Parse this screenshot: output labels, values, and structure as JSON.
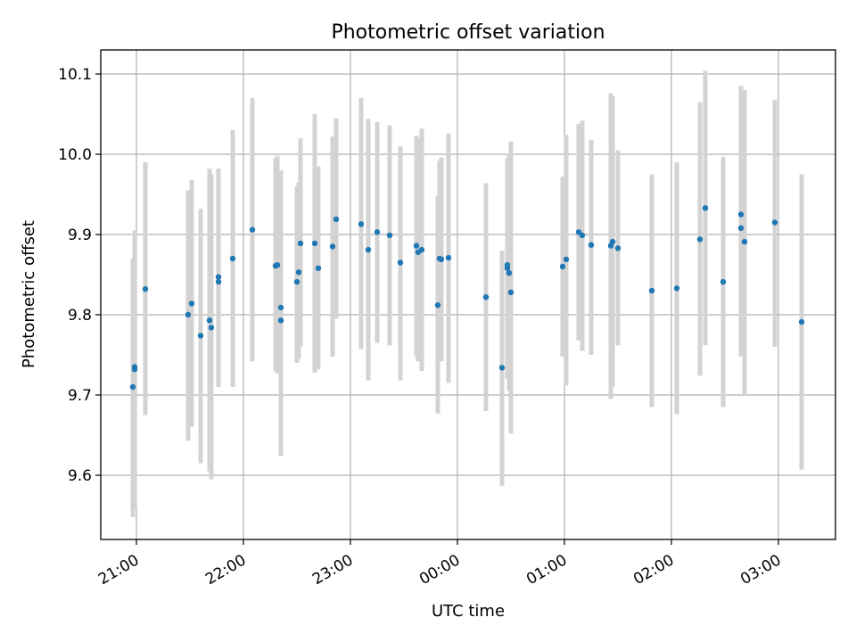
{
  "chart_data": {
    "type": "scatter",
    "title": "Photometric offset variation",
    "xlabel": "UTC time",
    "ylabel": "Photometric offset",
    "x_tick_labels": [
      "21:00",
      "22:00",
      "23:00",
      "00:00",
      "01:00",
      "02:00",
      "03:00"
    ],
    "y_tick_labels": [
      "9.6",
      "9.7",
      "9.8",
      "9.9",
      "10.0",
      "10.1"
    ],
    "xlim": [
      "20:40",
      "03:32"
    ],
    "ylim": [
      9.52,
      10.13
    ],
    "grid": true,
    "colors": {
      "point": "#1f77b4",
      "errorbar": "#d3d3d3"
    },
    "points": [
      {
        "t": "20:58",
        "y": 9.71,
        "lo": 9.548,
        "hi": 9.87
      },
      {
        "t": "20:59",
        "y": 9.732,
        "lo": 9.56,
        "hi": 9.895
      },
      {
        "t": "20:59",
        "y": 9.735,
        "lo": 9.565,
        "hi": 9.905
      },
      {
        "t": "21:05",
        "y": 9.832,
        "lo": 9.675,
        "hi": 9.99
      },
      {
        "t": "21:29",
        "y": 9.8,
        "lo": 9.643,
        "hi": 9.955
      },
      {
        "t": "21:31",
        "y": 9.814,
        "lo": 9.66,
        "hi": 9.968
      },
      {
        "t": "21:36",
        "y": 9.774,
        "lo": 9.615,
        "hi": 9.932
      },
      {
        "t": "21:41",
        "y": 9.793,
        "lo": 9.605,
        "hi": 9.982
      },
      {
        "t": "21:42",
        "y": 9.784,
        "lo": 9.595,
        "hi": 9.975
      },
      {
        "t": "21:46",
        "y": 9.841,
        "lo": 9.71,
        "hi": 9.982
      },
      {
        "t": "21:46",
        "y": 9.847,
        "lo": 9.712,
        "hi": 9.982
      },
      {
        "t": "21:54",
        "y": 9.87,
        "lo": 9.71,
        "hi": 10.03
      },
      {
        "t": "22:05",
        "y": 9.906,
        "lo": 9.742,
        "hi": 10.07
      },
      {
        "t": "22:18",
        "y": 9.861,
        "lo": 9.73,
        "hi": 9.995
      },
      {
        "t": "22:19",
        "y": 9.862,
        "lo": 9.727,
        "hi": 9.998
      },
      {
        "t": "22:21",
        "y": 9.809,
        "lo": 9.64,
        "hi": 9.98
      },
      {
        "t": "22:21",
        "y": 9.793,
        "lo": 9.624,
        "hi": 9.96
      },
      {
        "t": "22:30",
        "y": 9.841,
        "lo": 9.74,
        "hi": 9.96
      },
      {
        "t": "22:31",
        "y": 9.853,
        "lo": 9.745,
        "hi": 9.965
      },
      {
        "t": "22:32",
        "y": 9.889,
        "lo": 9.76,
        "hi": 10.02
      },
      {
        "t": "22:40",
        "y": 9.889,
        "lo": 9.728,
        "hi": 10.05
      },
      {
        "t": "22:42",
        "y": 9.858,
        "lo": 9.732,
        "hi": 9.985
      },
      {
        "t": "22:50",
        "y": 9.885,
        "lo": 9.748,
        "hi": 10.022
      },
      {
        "t": "22:52",
        "y": 9.919,
        "lo": 9.795,
        "hi": 10.045
      },
      {
        "t": "23:06",
        "y": 9.913,
        "lo": 9.757,
        "hi": 10.07
      },
      {
        "t": "23:10",
        "y": 9.881,
        "lo": 9.718,
        "hi": 10.044
      },
      {
        "t": "23:15",
        "y": 9.903,
        "lo": 9.765,
        "hi": 10.04
      },
      {
        "t": "23:22",
        "y": 9.899,
        "lo": 9.762,
        "hi": 10.036
      },
      {
        "t": "23:28",
        "y": 9.865,
        "lo": 9.718,
        "hi": 10.01
      },
      {
        "t": "23:37",
        "y": 9.886,
        "lo": 9.748,
        "hi": 10.023
      },
      {
        "t": "23:38",
        "y": 9.878,
        "lo": 9.742,
        "hi": 10.02
      },
      {
        "t": "23:40",
        "y": 9.881,
        "lo": 9.73,
        "hi": 10.032
      },
      {
        "t": "23:49",
        "y": 9.812,
        "lo": 9.677,
        "hi": 9.948
      },
      {
        "t": "23:50",
        "y": 9.87,
        "lo": 9.75,
        "hi": 9.992
      },
      {
        "t": "23:51",
        "y": 9.869,
        "lo": 9.742,
        "hi": 9.996
      },
      {
        "t": "23:55",
        "y": 9.871,
        "lo": 9.715,
        "hi": 10.026
      },
      {
        "t": "00:16",
        "y": 9.822,
        "lo": 9.68,
        "hi": 9.964
      },
      {
        "t": "00:25",
        "y": 9.734,
        "lo": 9.587,
        "hi": 9.88
      },
      {
        "t": "00:28",
        "y": 9.862,
        "lo": 9.72,
        "hi": 9.978
      },
      {
        "t": "00:28",
        "y": 9.858,
        "lo": 9.725,
        "hi": 9.995
      },
      {
        "t": "00:29",
        "y": 9.852,
        "lo": 9.705,
        "hi": 10.0
      },
      {
        "t": "00:30",
        "y": 9.828,
        "lo": 9.652,
        "hi": 10.016
      },
      {
        "t": "00:59",
        "y": 9.86,
        "lo": 9.748,
        "hi": 9.972
      },
      {
        "t": "01:01",
        "y": 9.869,
        "lo": 9.712,
        "hi": 10.024
      },
      {
        "t": "01:08",
        "y": 9.903,
        "lo": 9.768,
        "hi": 10.038
      },
      {
        "t": "01:10",
        "y": 9.899,
        "lo": 9.755,
        "hi": 10.042
      },
      {
        "t": "01:15",
        "y": 9.887,
        "lo": 9.75,
        "hi": 10.018
      },
      {
        "t": "01:26",
        "y": 9.886,
        "lo": 9.695,
        "hi": 10.076
      },
      {
        "t": "01:27",
        "y": 9.891,
        "lo": 9.71,
        "hi": 10.072
      },
      {
        "t": "01:30",
        "y": 9.883,
        "lo": 9.762,
        "hi": 10.005
      },
      {
        "t": "01:49",
        "y": 9.83,
        "lo": 9.685,
        "hi": 9.975
      },
      {
        "t": "02:03",
        "y": 9.833,
        "lo": 9.676,
        "hi": 9.99
      },
      {
        "t": "02:16",
        "y": 9.894,
        "lo": 9.724,
        "hi": 10.065
      },
      {
        "t": "02:19",
        "y": 9.933,
        "lo": 9.762,
        "hi": 10.104
      },
      {
        "t": "02:29",
        "y": 9.841,
        "lo": 9.685,
        "hi": 9.997
      },
      {
        "t": "02:39",
        "y": 9.925,
        "lo": 9.765,
        "hi": 10.085
      },
      {
        "t": "02:39",
        "y": 9.908,
        "lo": 9.748,
        "hi": 10.07
      },
      {
        "t": "02:41",
        "y": 9.891,
        "lo": 9.7,
        "hi": 10.08
      },
      {
        "t": "02:58",
        "y": 9.915,
        "lo": 9.76,
        "hi": 10.068
      },
      {
        "t": "03:13",
        "y": 9.791,
        "lo": 9.607,
        "hi": 9.975
      }
    ]
  }
}
